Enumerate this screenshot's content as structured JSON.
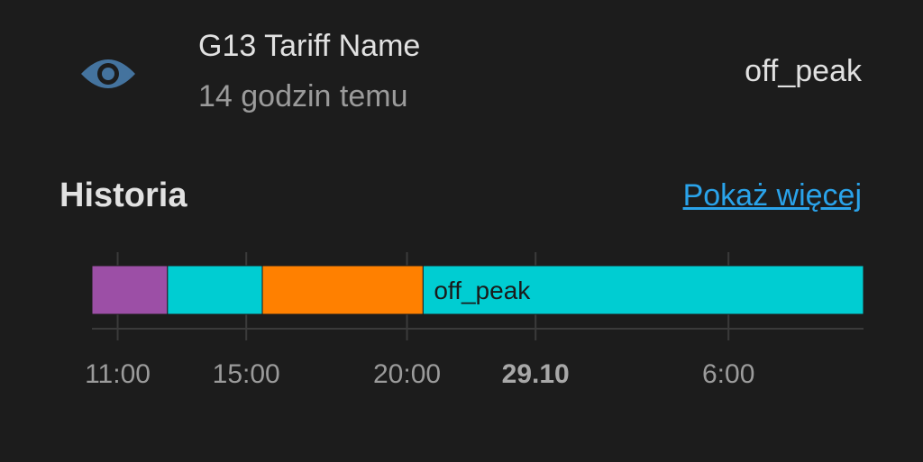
{
  "entity": {
    "icon": "eye-icon",
    "name": "G13 Tariff Name",
    "last_changed": "14 godzin temu",
    "state": "off_peak"
  },
  "history": {
    "title": "Historia",
    "show_more": "Pokaż więcej"
  },
  "colors": {
    "background": "#1c1c1c",
    "icon": "#44739e",
    "link": "#2aa3ea",
    "purple": "#9c4fa6",
    "cyan": "#00cdd2",
    "orange": "#ff8000"
  },
  "chart_data": {
    "type": "timeline",
    "x_unit": "hours",
    "x_range": [
      10.2,
      34.2
    ],
    "segments": [
      {
        "start": 10.2,
        "end": 12.55,
        "color": "#9c4fa6",
        "label": ""
      },
      {
        "start": 12.55,
        "end": 15.5,
        "color": "#00cdd2",
        "label": ""
      },
      {
        "start": 15.5,
        "end": 20.5,
        "color": "#ff8000",
        "label": ""
      },
      {
        "start": 20.5,
        "end": 34.2,
        "color": "#00cdd2",
        "label": "off_peak"
      }
    ],
    "ticks": [
      {
        "value": 11,
        "label": "11:00",
        "bold": false
      },
      {
        "value": 15,
        "label": "15:00",
        "bold": false
      },
      {
        "value": 20,
        "label": "20:00",
        "bold": false
      },
      {
        "value": 24,
        "label": "29.10",
        "bold": true
      },
      {
        "value": 30,
        "label": "6:00",
        "bold": false
      }
    ]
  }
}
